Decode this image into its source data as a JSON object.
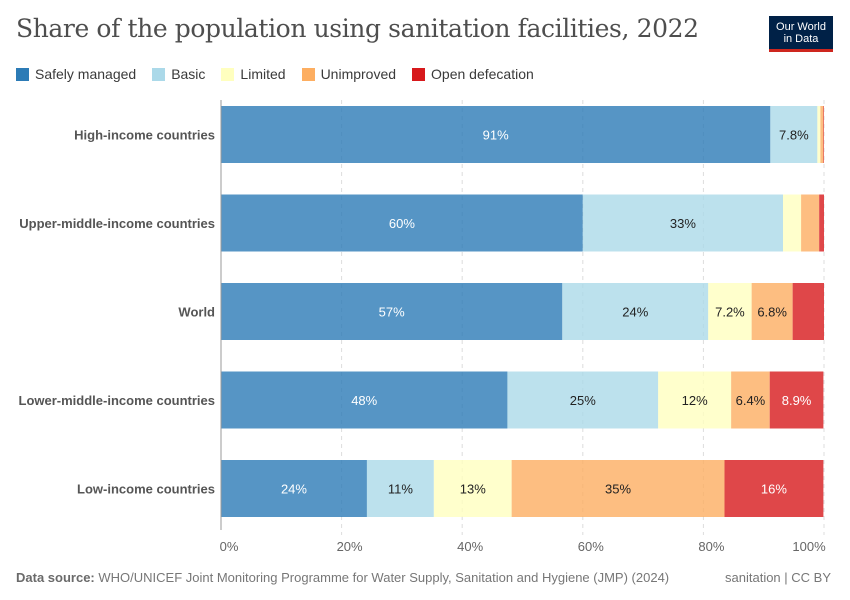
{
  "header": {
    "title": "Share of the population using sanitation facilities, 2022",
    "logo_line1": "Our World",
    "logo_line2": "in Data"
  },
  "footer": {
    "source_label": "Data source:",
    "source_text": " WHO/UNICEF Joint Monitoring Programme for Water Supply, Sanitation and Hygiene (JMP) (2024)",
    "right_text": "sanitation | CC BY"
  },
  "chart_data": {
    "type": "bar",
    "orientation": "horizontal",
    "stacked": true,
    "title": "Share of the population using sanitation facilities, 2022",
    "xlabel": "",
    "ylabel": "",
    "xlim": [
      0,
      100
    ],
    "x_ticks": [
      "0%",
      "20%",
      "40%",
      "60%",
      "80%",
      "100%"
    ],
    "x_tick_values": [
      0,
      20,
      40,
      60,
      80,
      100
    ],
    "grid": "vertical dashed",
    "legend_position": "top-left",
    "categories": [
      "High-income countries",
      "Upper-middle-income countries",
      "World",
      "Lower-middle-income countries",
      "Low-income countries"
    ],
    "series": [
      {
        "name": "Safely managed",
        "color": "#2c7bb6",
        "values": [
          91.1,
          60.0,
          56.6,
          47.5,
          24.2
        ],
        "labels": [
          "91%",
          "60%",
          "57%",
          "48%",
          "24%"
        ]
      },
      {
        "name": "Basic",
        "color": "#abd9e9",
        "values": [
          7.8,
          33.2,
          24.2,
          25.0,
          11.1
        ],
        "labels": [
          "7.8%",
          "33%",
          "24%",
          "25%",
          "11%"
        ]
      },
      {
        "name": "Limited",
        "color": "#ffffbf",
        "values": [
          0.5,
          3.0,
          7.2,
          12.1,
          12.9
        ],
        "labels": [
          "",
          "",
          "7.2%",
          "12%",
          "13%"
        ]
      },
      {
        "name": "Unimproved",
        "color": "#fdae61",
        "values": [
          0.5,
          3.0,
          6.8,
          6.4,
          35.3
        ],
        "labels": [
          "",
          "",
          "6.8%",
          "6.4%",
          "35%"
        ]
      },
      {
        "name": "Open defecation",
        "color": "#d7191c",
        "values": [
          0.1,
          0.8,
          5.2,
          8.9,
          16.4
        ],
        "labels": [
          "",
          "",
          "",
          "8.9%",
          "16%"
        ]
      }
    ]
  }
}
